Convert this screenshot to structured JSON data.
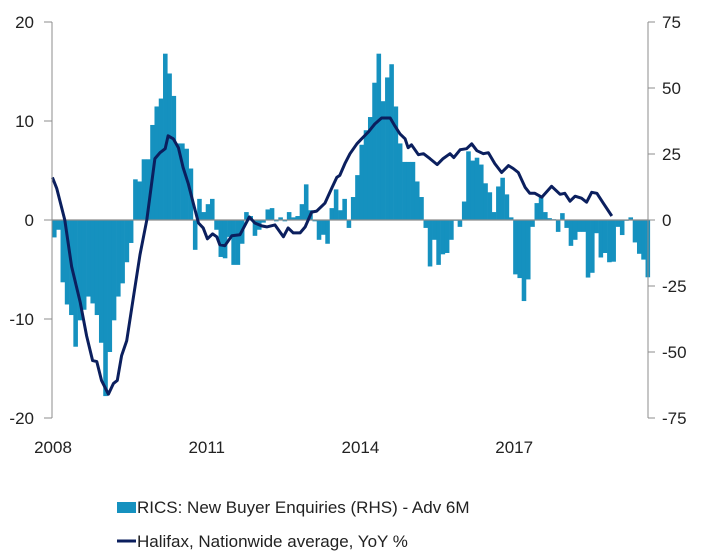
{
  "chart_data": {
    "type": "bar+line",
    "title": "",
    "left_axis": {
      "ylim": [
        -20,
        20
      ],
      "ticks": [
        "20",
        "10",
        "0",
        "-10",
        "-20"
      ],
      "tick_values": [
        20,
        10,
        0,
        -10,
        -20
      ]
    },
    "right_axis": {
      "ylim": [
        -75,
        75
      ],
      "ticks": [
        "75",
        "50",
        "25",
        "0",
        "-25",
        "-50",
        "-75"
      ],
      "tick_values": [
        75,
        50,
        25,
        0,
        -25,
        -50,
        -75
      ]
    },
    "x_axis": {
      "ticks": [
        "2008",
        "2011",
        "2014",
        "2017"
      ],
      "tick_months": [
        0,
        36,
        72,
        108
      ],
      "start": "2008-01",
      "unit": "month"
    },
    "legend": {
      "position": "bottom",
      "entries": [
        "RICS: New Buyer Enquiries (RHS) - Adv 6M",
        "Halifax, Nationwide average, YoY %"
      ]
    },
    "series": [
      {
        "name": "RICS: New Buyer Enquiries (RHS) - Adv 6M",
        "type": "bar",
        "axis": "right",
        "color": "#1591BF",
        "values": [
          -6.6,
          -3.7,
          -23.6,
          -32,
          -36,
          -48,
          -38,
          -34,
          -29,
          -31.6,
          -36,
          -46.5,
          -66.7,
          -50,
          -38,
          -29,
          -24,
          -16,
          -8.7,
          15.4,
          14.6,
          23,
          23,
          36,
          43,
          46,
          63,
          55.5,
          47,
          29,
          29,
          27,
          19.5,
          -11.3,
          8,
          3,
          6,
          8,
          -3.7,
          -14,
          -14.5,
          -6.4,
          -17,
          -17,
          -9,
          3,
          1.5,
          -6,
          -3.7,
          -1,
          4,
          4.5,
          -0.5,
          1,
          -0.5,
          3,
          1,
          1.5,
          6,
          13.5,
          3.7,
          -0.5,
          -7.5,
          -5.6,
          -9,
          4.5,
          11.6,
          3.7,
          8,
          -3,
          8.7,
          17,
          28.5,
          34,
          39,
          52,
          63,
          45,
          54,
          59,
          43,
          29,
          22,
          22,
          22,
          14.6,
          8.7,
          -3,
          -17.6,
          -7.5,
          -17,
          -13,
          -12.5,
          -7.5,
          -0.3,
          -2.6,
          7,
          26,
          22.5,
          23.6,
          21,
          13.9,
          10.5,
          3,
          12.7,
          16,
          9.7,
          1,
          -20.6,
          -22,
          -30.7,
          -22.5,
          -2.6,
          6.4,
          8.7,
          3,
          0.7,
          0.3,
          -4.5,
          2.6,
          -3,
          -9.8,
          -7.5,
          -4.5,
          -4.5,
          -21.8,
          -20,
          -5,
          -14.2,
          -12.5,
          -16,
          -15.8,
          -2.6,
          -5.7,
          -0.3,
          1,
          -8.5,
          -12.8,
          -15,
          -21.7
        ]
      },
      {
        "name": "Halifax, Nationwide average, YoY %",
        "type": "line",
        "axis": "left",
        "color": "#0B1F5E",
        "points_month_value": [
          [
            0.1,
            4.3
          ],
          [
            1.1,
            3.2
          ],
          [
            3.0,
            0
          ],
          [
            4.6,
            -4.7
          ],
          [
            6.6,
            -8.3
          ],
          [
            8.1,
            -11.7
          ],
          [
            9.5,
            -14.2
          ],
          [
            10.5,
            -14.3
          ],
          [
            11.6,
            -16.2
          ],
          [
            13.2,
            -17.6
          ],
          [
            14.4,
            -16.5
          ],
          [
            15.3,
            -16.2
          ],
          [
            16.3,
            -13.7
          ],
          [
            17.5,
            -12.2
          ],
          [
            19.0,
            -8
          ],
          [
            20.6,
            -3.5
          ],
          [
            22.2,
            0
          ],
          [
            24.1,
            6.2
          ],
          [
            25.3,
            6.8
          ],
          [
            26.5,
            7.2
          ],
          [
            27.2,
            8.5
          ],
          [
            28.4,
            8.2
          ],
          [
            29.6,
            7.3
          ],
          [
            30.7,
            5.3
          ],
          [
            31.9,
            3.7
          ],
          [
            33.1,
            1.7
          ],
          [
            34.3,
            -0.3
          ],
          [
            35.4,
            -0.8
          ],
          [
            36.4,
            -1.9
          ],
          [
            37.6,
            -1.4
          ],
          [
            38.6,
            -1.7
          ],
          [
            39.3,
            -2.5
          ],
          [
            40.5,
            -2.6
          ],
          [
            42.1,
            -1.6
          ],
          [
            44.0,
            -1.5
          ],
          [
            45.0,
            -0.7
          ],
          [
            46.2,
            0.3
          ],
          [
            47.5,
            -0.3
          ],
          [
            49.1,
            -0.6
          ],
          [
            50.3,
            -0.7
          ],
          [
            52.2,
            -0.5
          ],
          [
            54.2,
            -1.7
          ],
          [
            55.3,
            -0.8
          ],
          [
            56.5,
            -1.3
          ],
          [
            58.1,
            -1.3
          ],
          [
            59.3,
            -0.7
          ],
          [
            60.8,
            0.8
          ],
          [
            62.0,
            0.9
          ],
          [
            63.9,
            1.7
          ],
          [
            65.5,
            3.2
          ],
          [
            66.7,
            4.3
          ],
          [
            67.4,
            4.5
          ],
          [
            68.6,
            5.7
          ],
          [
            69.8,
            6.7
          ],
          [
            71.4,
            7.7
          ],
          [
            72.5,
            8.2
          ],
          [
            74.1,
            8.9
          ],
          [
            75.6,
            9.7
          ],
          [
            77.2,
            10.3
          ],
          [
            79.2,
            10.3
          ],
          [
            80.3,
            9.5
          ],
          [
            81.5,
            8.7
          ],
          [
            82.7,
            8.2
          ],
          [
            83.4,
            7.3
          ],
          [
            84.2,
            7.6
          ],
          [
            85.8,
            6.6
          ],
          [
            87.0,
            6.7
          ],
          [
            88.5,
            6.2
          ],
          [
            90.2,
            5.6
          ],
          [
            91.6,
            6.2
          ],
          [
            93.2,
            6.7
          ],
          [
            94.1,
            6.3
          ],
          [
            95.6,
            7.1
          ],
          [
            97.1,
            7.2
          ],
          [
            98.3,
            7.7
          ],
          [
            99.5,
            7.0
          ],
          [
            101.0,
            6.7
          ],
          [
            102.2,
            6.8
          ],
          [
            103.7,
            5.7
          ],
          [
            105.3,
            4.8
          ],
          [
            106.9,
            5.5
          ],
          [
            108.0,
            5.2
          ],
          [
            109.2,
            4.8
          ],
          [
            110.8,
            3.3
          ],
          [
            111.9,
            2.7
          ],
          [
            113.1,
            2.7
          ],
          [
            114.7,
            2.3
          ],
          [
            117.0,
            3.4
          ],
          [
            119.0,
            2.6
          ],
          [
            120.1,
            2.7
          ],
          [
            121.3,
            1.9
          ],
          [
            122.5,
            2.4
          ],
          [
            124.0,
            2.2
          ],
          [
            125.2,
            1.8
          ],
          [
            126.4,
            2.8
          ],
          [
            127.6,
            2.7
          ],
          [
            129.1,
            1.7
          ],
          [
            131.1,
            0.4
          ]
        ]
      }
    ]
  }
}
